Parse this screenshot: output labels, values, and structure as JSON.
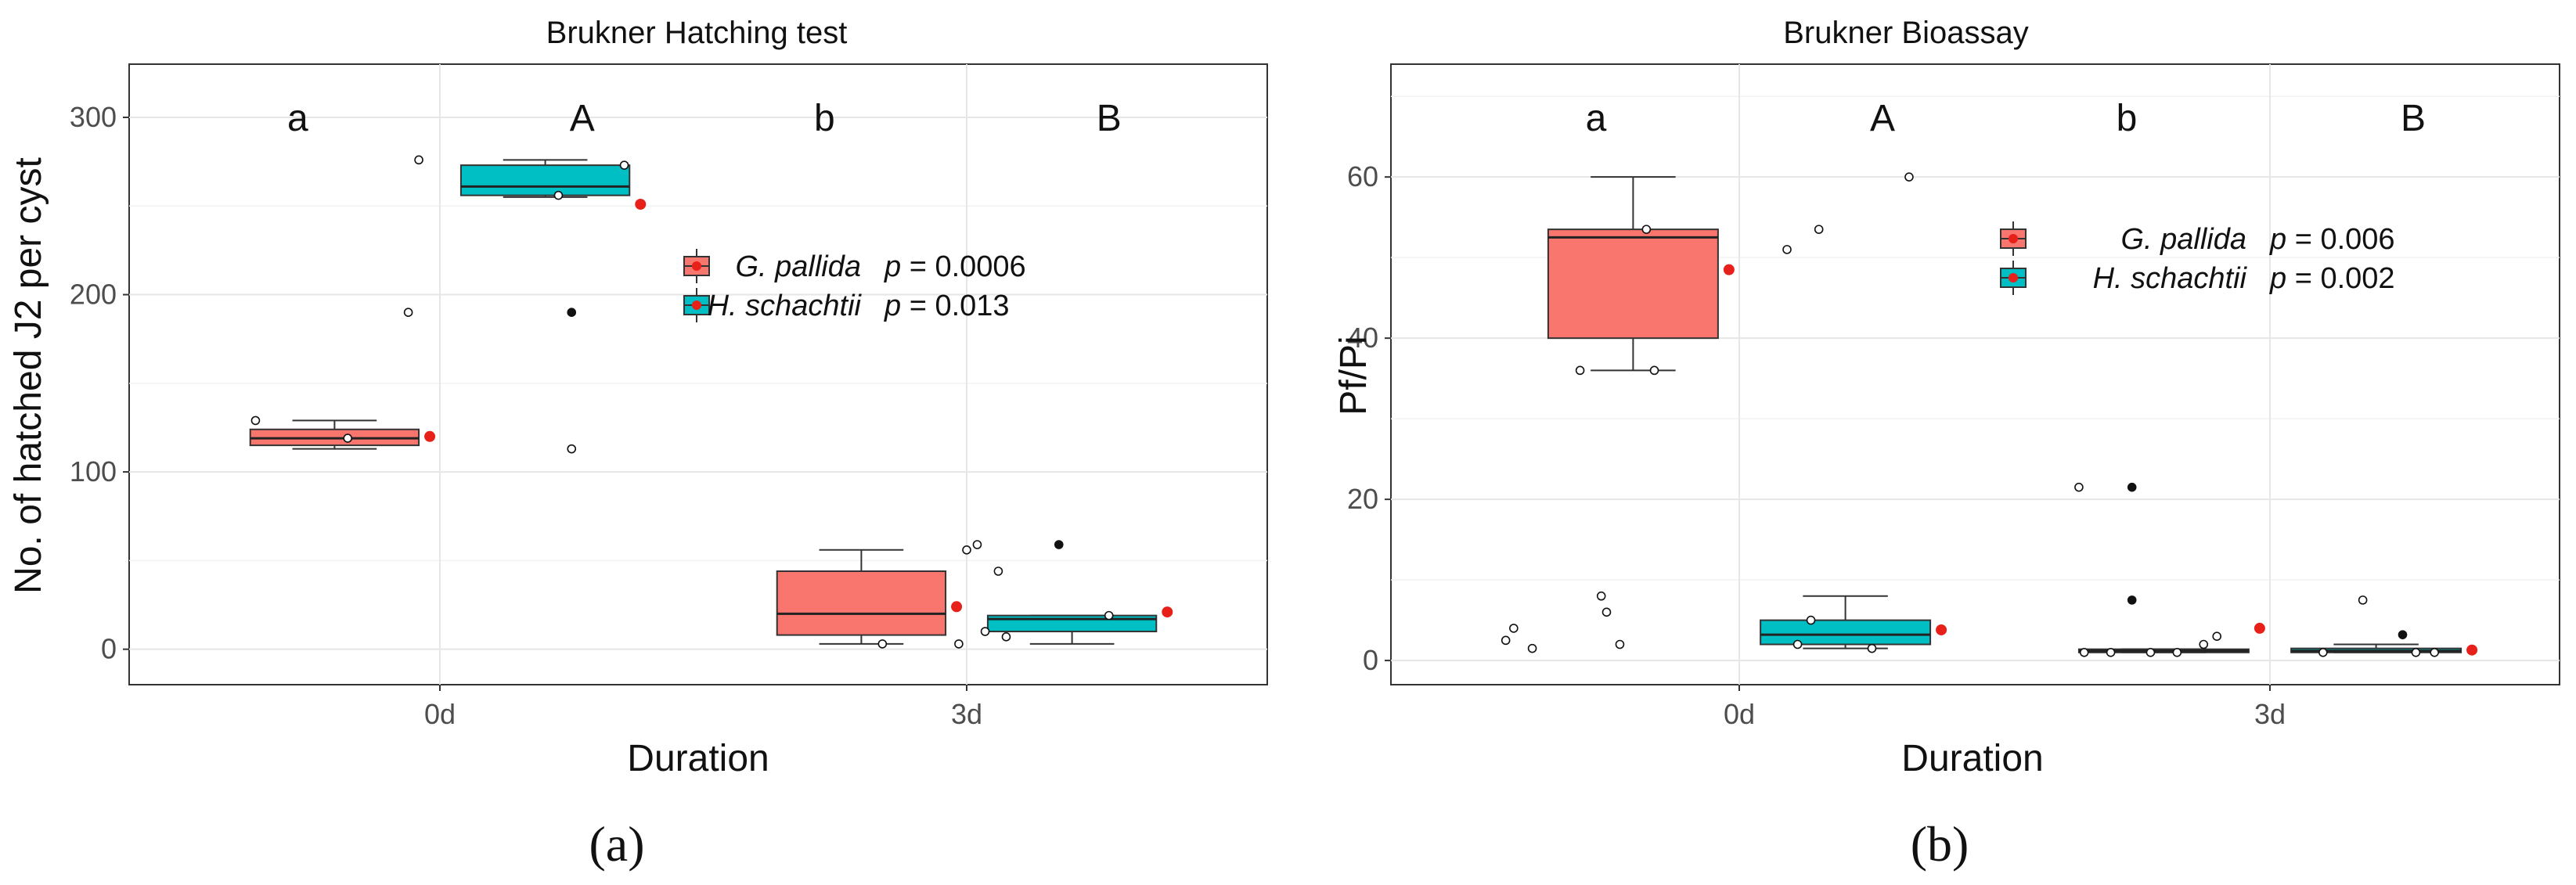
{
  "legend_colors": {
    "G. pallida": "#F8766D",
    "H. schachtii": "#00BFC4"
  },
  "mean_color": "#E8201A",
  "chart_data": [
    {
      "type": "box",
      "title": "Brukner Hatching test",
      "xlabel": "Duration",
      "ylabel": "No. of hatched J2 per cyst",
      "categories": [
        "0d",
        "3d"
      ],
      "ylim": [
        -20,
        330
      ],
      "yticks": [
        0,
        100,
        200,
        300
      ],
      "grid": true,
      "legend_placement": "inside-right",
      "panel_label": "(a)",
      "letters": [
        {
          "text": "a",
          "category": "0d",
          "series": "G. pallida"
        },
        {
          "text": "A",
          "category": "0d",
          "series": "H. schachtii"
        },
        {
          "text": "b",
          "category": "3d",
          "series": "G. pallida"
        },
        {
          "text": "B",
          "category": "3d",
          "series": "H. schachtii"
        }
      ],
      "series": [
        {
          "name": "G. pallida",
          "p_label": "p",
          "p_value": "= 0.0006",
          "boxes": [
            {
              "category": "0d",
              "min": 113,
              "q1": 115,
              "median": 119,
              "q3": 124,
              "max": 129,
              "mean": 120,
              "points": [
                {
                  "dx": -0.3,
                  "y": 129
                },
                {
                  "dx": 0.05,
                  "y": 119
                }
              ]
            },
            {
              "category": "3d",
              "min": 3,
              "q1": 8,
              "median": 20,
              "q3": 44,
              "max": 56,
              "mean": 24,
              "points": [
                {
                  "dx": 0.08,
                  "y": 3
                }
              ]
            }
          ]
        },
        {
          "name": "H. schachtii",
          "p_label": "p",
          "p_value": "= 0.013",
          "boxes": [
            {
              "category": "0d",
              "min": 255,
              "q1": 256,
              "median": 261,
              "q3": 273,
              "max": 276,
              "mean": 251,
              "points": [
                {
                  "dx": -0.48,
                  "y": 276
                },
                {
                  "dx": -0.52,
                  "y": 190
                },
                {
                  "dx": 0.05,
                  "y": 256
                },
                {
                  "dx": 0.1,
                  "y": 190,
                  "filled": true
                },
                {
                  "dx": 0.1,
                  "y": 113
                },
                {
                  "dx": 0.3,
                  "y": 273
                }
              ]
            },
            {
              "category": "3d",
              "min": 3,
              "q1": 10,
              "median": 17,
              "q3": 19,
              "max": 19,
              "mean": 21,
              "points": [
                {
                  "dx": -0.43,
                  "y": 3
                },
                {
                  "dx": -0.4,
                  "y": 56
                },
                {
                  "dx": -0.36,
                  "y": 59
                },
                {
                  "dx": -0.33,
                  "y": 10
                },
                {
                  "dx": -0.28,
                  "y": 44
                },
                {
                  "dx": -0.25,
                  "y": 7
                },
                {
                  "dx": -0.05,
                  "y": 59,
                  "filled": true
                },
                {
                  "dx": 0.14,
                  "y": 19
                }
              ]
            }
          ]
        }
      ]
    },
    {
      "type": "box",
      "title": "Brukner Bioassay",
      "xlabel": "Duration",
      "ylabel": "Pf/Pi",
      "categories": [
        "0d",
        "3d"
      ],
      "ylim": [
        -3,
        74
      ],
      "yticks": [
        0,
        20,
        40,
        60
      ],
      "grid": true,
      "legend_placement": "inside-right",
      "panel_label": "(b)",
      "letters": [
        {
          "text": "a",
          "category": "0d",
          "series": "G. pallida"
        },
        {
          "text": "A",
          "category": "0d",
          "series": "H. schachtii"
        },
        {
          "text": "b",
          "category": "3d",
          "series": "G. pallida"
        },
        {
          "text": "B",
          "category": "3d",
          "series": "H. schachtii"
        }
      ],
      "series": [
        {
          "name": "G. pallida",
          "p_label": "p",
          "p_value": "= 0.006",
          "boxes": [
            {
              "category": "0d",
              "min": 36,
              "q1": 40,
              "median": 52.5,
              "q3": 53.5,
              "max": 60,
              "mean": 48.5,
              "points": [
                {
                  "dx": -0.2,
                  "y": 36
                },
                {
                  "dx": 0.08,
                  "y": 36
                },
                {
                  "dx": 0.05,
                  "y": 53.5
                },
                {
                  "dx": -0.48,
                  "y": 2.5
                },
                {
                  "dx": -0.45,
                  "y": 4
                },
                {
                  "dx": -0.38,
                  "y": 1.5
                },
                {
                  "dx": -0.12,
                  "y": 8
                },
                {
                  "dx": -0.1,
                  "y": 6
                },
                {
                  "dx": -0.05,
                  "y": 2
                }
              ]
            },
            {
              "category": "3d",
              "min": 1,
              "q1": 1,
              "median": 1.2,
              "q3": 1.4,
              "max": 1.4,
              "mean": 4,
              "points": [
                {
                  "dx": -0.32,
                  "y": 21.5
                },
                {
                  "dx": -0.12,
                  "y": 21.5,
                  "filled": true
                },
                {
                  "dx": -0.12,
                  "y": 7.5,
                  "filled": true
                },
                {
                  "dx": -0.3,
                  "y": 1
                },
                {
                  "dx": -0.2,
                  "y": 1
                },
                {
                  "dx": -0.05,
                  "y": 1
                },
                {
                  "dx": 0.05,
                  "y": 1
                },
                {
                  "dx": 0.15,
                  "y": 2
                },
                {
                  "dx": 0.2,
                  "y": 3
                }
              ]
            }
          ]
        },
        {
          "name": "H. schachtii",
          "p_label": "p",
          "p_value": "= 0.002",
          "boxes": [
            {
              "category": "0d",
              "min": 1.5,
              "q1": 2,
              "median": 3.2,
              "q3": 5,
              "max": 8,
              "mean": 3.8,
              "points": [
                {
                  "dx": -0.22,
                  "y": 51
                },
                {
                  "dx": -0.1,
                  "y": 53.5
                },
                {
                  "dx": 0.24,
                  "y": 60
                },
                {
                  "dx": -0.18,
                  "y": 2
                },
                {
                  "dx": -0.13,
                  "y": 5
                },
                {
                  "dx": 0.1,
                  "y": 1.5
                }
              ]
            },
            {
              "category": "3d",
              "min": 1,
              "q1": 1,
              "median": 1.2,
              "q3": 1.5,
              "max": 2,
              "mean": 1.3,
              "points": [
                {
                  "dx": -0.05,
                  "y": 7.5
                },
                {
                  "dx": 0.1,
                  "y": 3.2,
                  "filled": true
                },
                {
                  "dx": 0.15,
                  "y": 1
                },
                {
                  "dx": 0.22,
                  "y": 1
                },
                {
                  "dx": -0.2,
                  "y": 1
                }
              ]
            }
          ]
        }
      ]
    }
  ]
}
